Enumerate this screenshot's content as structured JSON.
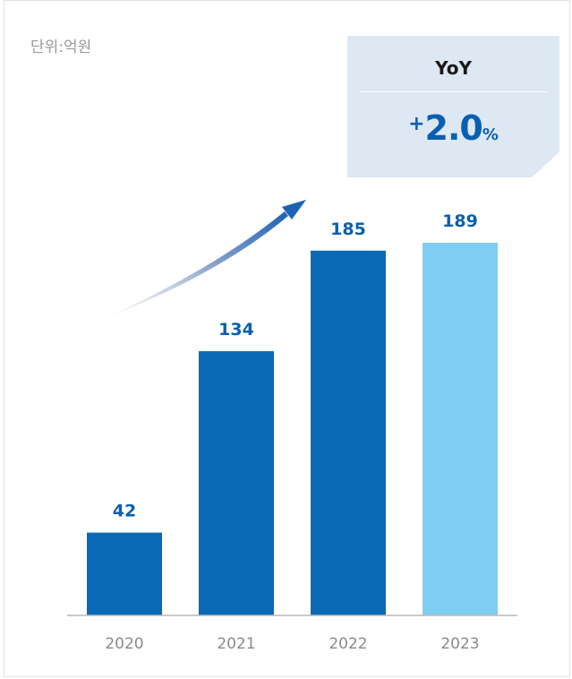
{
  "unit_label": "단위:억원",
  "yoy": {
    "title": "YoY",
    "sign": "+",
    "value": "2.0",
    "percent_symbol": "%",
    "box_color": "#dde8f3",
    "value_color": "#0a5fb0"
  },
  "chart_data": {
    "type": "bar",
    "categories": [
      "2020",
      "2021",
      "2022",
      "2023"
    ],
    "values": [
      42,
      134,
      185,
      189
    ],
    "data_labels": [
      "42",
      "134",
      "185",
      "189"
    ],
    "bar_colors": [
      "#0a6ab6",
      "#0a6ab6",
      "#0a6ab6",
      "#7fcdf0"
    ],
    "label_color": "#0a5fb0",
    "tick_color": "#8a8a8a",
    "ylim": [
      0,
      189
    ],
    "title": "",
    "xlabel": "",
    "ylabel": "",
    "grid": false,
    "growth_arrow": true
  }
}
